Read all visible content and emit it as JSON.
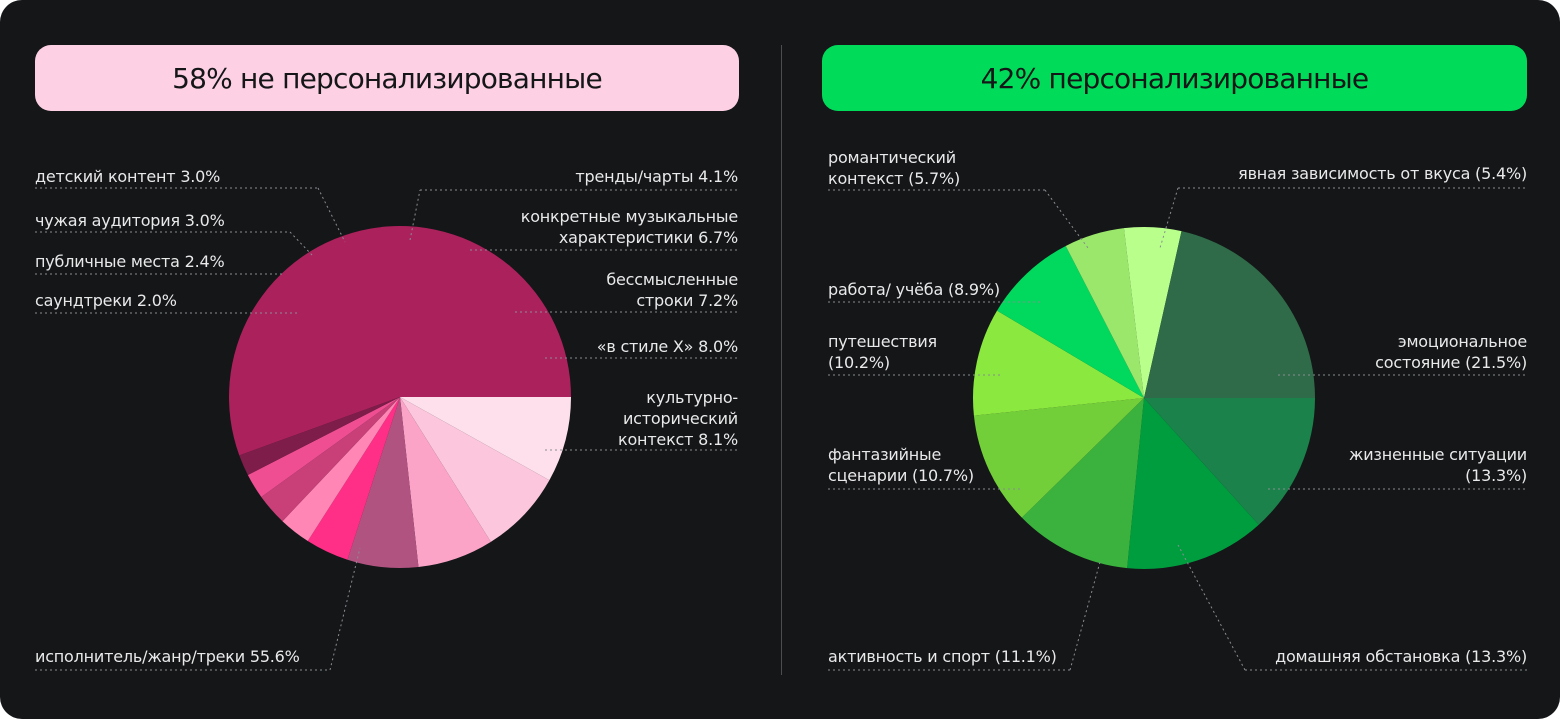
{
  "headers": {
    "left": "58% не персонализированные",
    "right": "42% персонализированные"
  },
  "colors": {
    "background": "#141618",
    "left_header": "#fdd0e3",
    "right_header": "#00dc5a",
    "label_text": "#e9e9ea"
  },
  "chart_data": [
    {
      "type": "pie",
      "title": "58% не персонализированные",
      "unit": "%",
      "slices": [
        {
          "label": "культурно-\nисторический\nконтекст 8.1%",
          "value": 8.1,
          "color": "#fde0ec"
        },
        {
          "label": "«в стиле X» 8.0%",
          "value": 8.0,
          "color": "#fcc6dc"
        },
        {
          "label": "бессмысленные\nстроки 7.2%",
          "value": 7.2,
          "color": "#fba4c8"
        },
        {
          "label": "конкретные музыкальные\nхарактеристики 6.7%",
          "value": 6.7,
          "color": "#b15380"
        },
        {
          "label": "тренды/чарты 4.1%",
          "value": 4.1,
          "color": "#ff2e86"
        },
        {
          "label": "детский контент 3.0%",
          "value": 3.0,
          "color": "#ff86b5"
        },
        {
          "label": "чужая аудитория 3.0%",
          "value": 3.0,
          "color": "#c93f78"
        },
        {
          "label": "публичные места 2.4%",
          "value": 2.4,
          "color": "#f04e93"
        },
        {
          "label": "саундтреки 2.0%",
          "value": 2.0,
          "color": "#7e1c4a"
        },
        {
          "label": "исполнитель/жанр/треки 55.6%",
          "value": 55.6,
          "color": "#ab215c"
        }
      ]
    },
    {
      "type": "pie",
      "title": "42% персонализированные",
      "unit": "%",
      "slices": [
        {
          "label": "жизненные ситуации\n(13.3%)",
          "value": 13.3,
          "color": "#1a824a"
        },
        {
          "label": "домашняя обстановка (13.3%)",
          "value": 13.3,
          "color": "#009d3f"
        },
        {
          "label": "активность и спорт (11.1%)",
          "value": 11.1,
          "color": "#3ab23d"
        },
        {
          "label": "фантазийные\nсценарии (10.7%)",
          "value": 10.7,
          "color": "#72cf3a"
        },
        {
          "label": "путешествия\n(10.2%)",
          "value": 10.2,
          "color": "#8be83f"
        },
        {
          "label": "работа/ учёба (8.9%)",
          "value": 8.9,
          "color": "#00d95e"
        },
        {
          "label": "романтический\nконтекст (5.7%)",
          "value": 5.7,
          "color": "#9ae76c"
        },
        {
          "label": "явная зависимость от вкуса (5.4%)",
          "value": 5.4,
          "color": "#b8ff8c"
        },
        {
          "label": "эмоциональное\nсостояние (21.5%)",
          "value": 21.5,
          "color": "#2f6b48"
        }
      ]
    }
  ]
}
